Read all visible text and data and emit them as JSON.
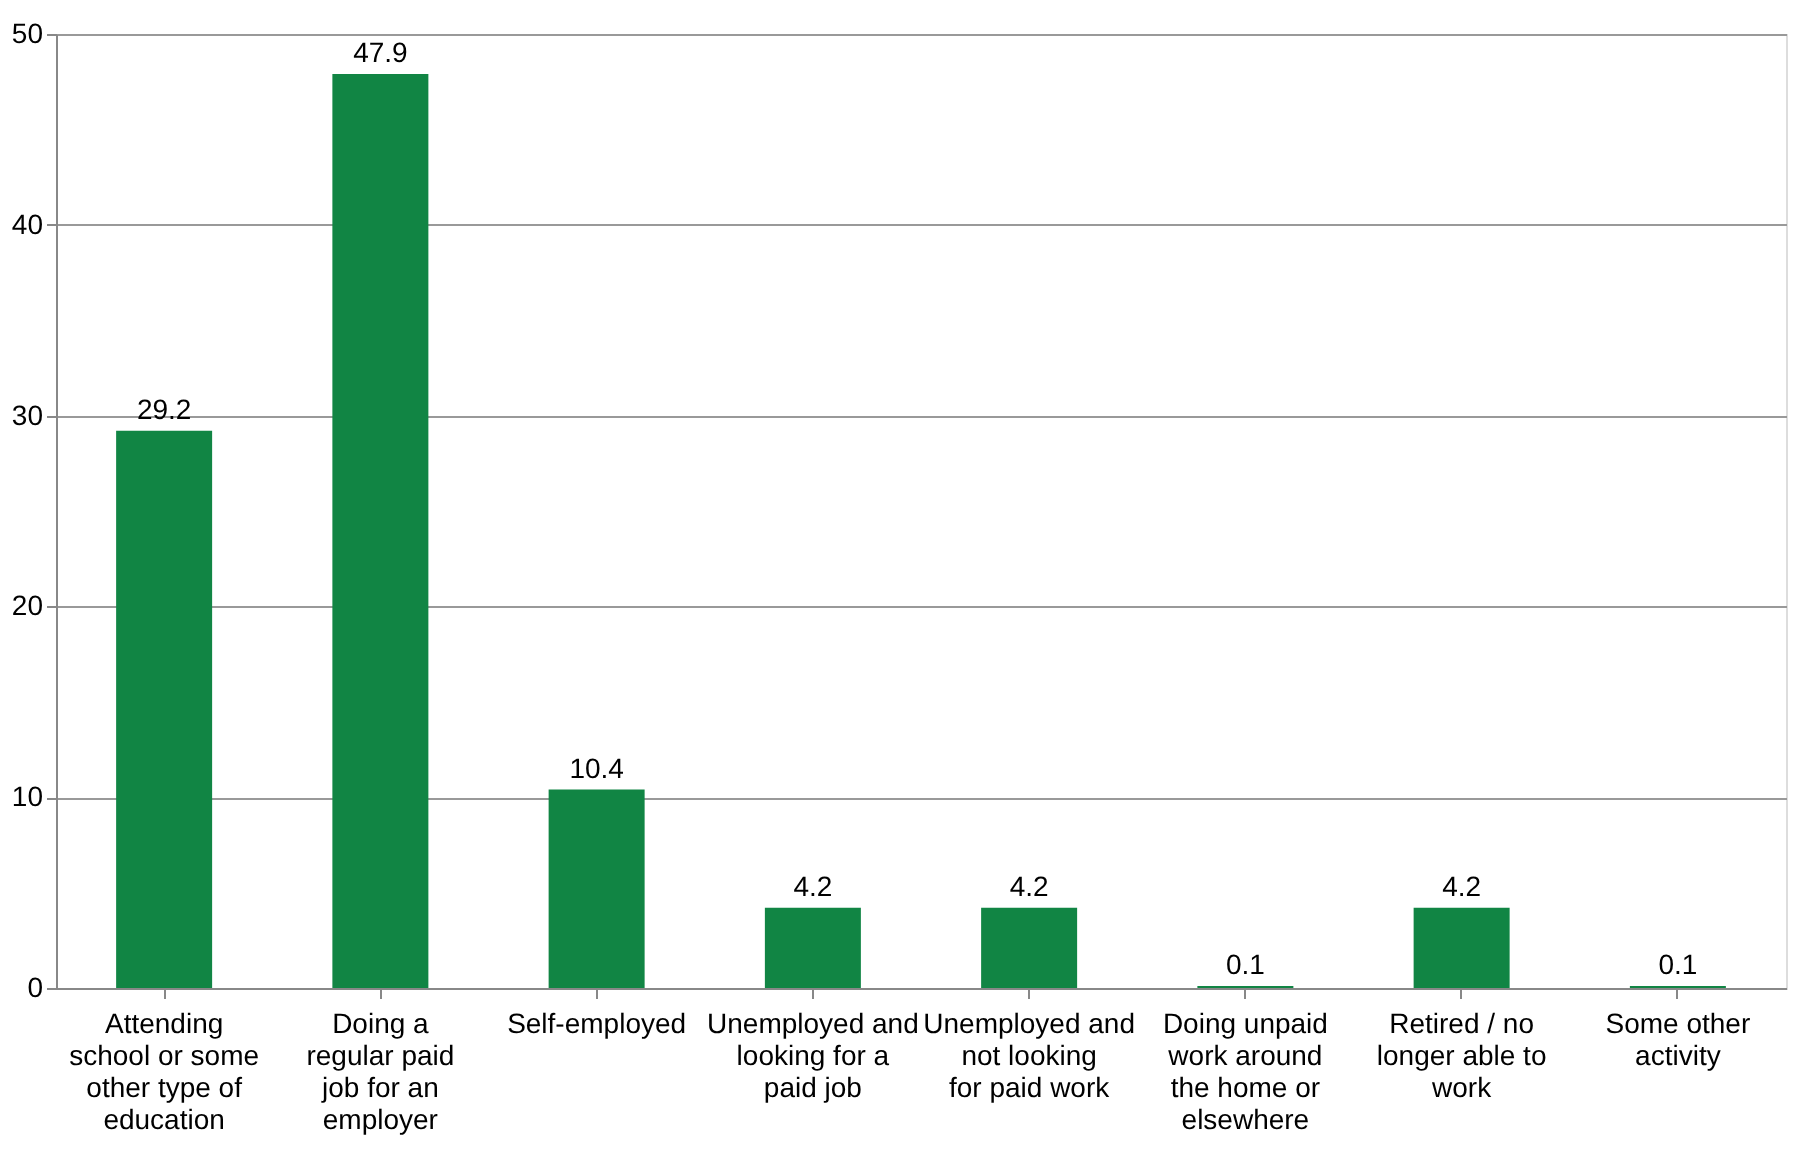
{
  "chart_data": {
    "type": "bar",
    "categories": [
      "Attending school or some other type of education",
      "Doing a regular paid job for an employer",
      "Self-employed",
      "Unemployed and looking for a paid job",
      "Unemployed and not looking for paid work",
      "Doing unpaid work around the home or elsewhere",
      "Retired / no longer able to work",
      "Some other activity"
    ],
    "values": [
      29.2,
      47.9,
      10.4,
      4.2,
      4.2,
      0.1,
      4.2,
      0.1
    ],
    "color": "#118544",
    "ylim": [
      0,
      50
    ],
    "yticks": [
      0,
      10,
      20,
      30,
      40,
      50
    ],
    "grid": "y",
    "data_labels": true
  }
}
